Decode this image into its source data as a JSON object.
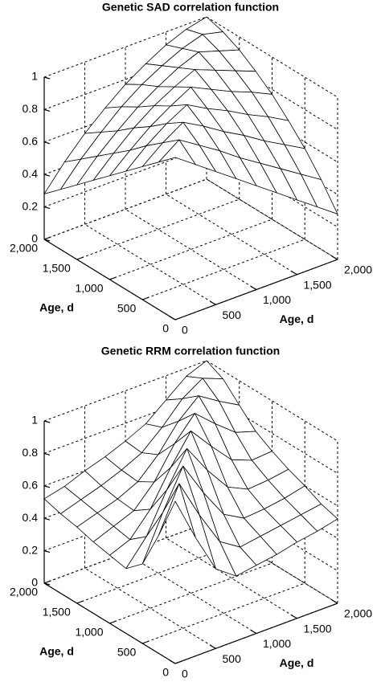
{
  "chart_data": [
    {
      "type": "surface",
      "title": "Genetic SAD correlation function",
      "xlabel": "Age, d",
      "ylabel": "Age, d",
      "x": [
        0,
        250,
        500,
        750,
        1000,
        1250,
        1500,
        1750,
        2000
      ],
      "y": [
        0,
        250,
        500,
        750,
        1000,
        1250,
        1500,
        1750,
        2000
      ],
      "z": [
        [
          1,
          0.91,
          0.82,
          0.73,
          0.64,
          0.55,
          0.46,
          0.37,
          0.28
        ],
        [
          0.91,
          1,
          0.92,
          0.84,
          0.75,
          0.67,
          0.59,
          0.51,
          0.43
        ],
        [
          0.82,
          0.92,
          1,
          0.93,
          0.85,
          0.78,
          0.7,
          0.63,
          0.56
        ],
        [
          0.73,
          0.84,
          0.93,
          1,
          0.93,
          0.87,
          0.8,
          0.74,
          0.67
        ],
        [
          0.64,
          0.75,
          0.85,
          0.93,
          1,
          0.94,
          0.88,
          0.83,
          0.77
        ],
        [
          0.55,
          0.67,
          0.78,
          0.87,
          0.94,
          1,
          0.95,
          0.9,
          0.85
        ],
        [
          0.46,
          0.59,
          0.7,
          0.8,
          0.88,
          0.95,
          1,
          0.96,
          0.92
        ],
        [
          0.37,
          0.51,
          0.63,
          0.74,
          0.83,
          0.9,
          0.96,
          1,
          0.97
        ],
        [
          0.28,
          0.43,
          0.56,
          0.67,
          0.77,
          0.85,
          0.92,
          0.97,
          1
        ]
      ],
      "xlim": [
        0,
        2000
      ],
      "ylim": [
        0,
        2000
      ],
      "zlim": [
        0,
        1
      ],
      "xticks": [
        0,
        500,
        {
          "value": 1000,
          "label": "1,000"
        },
        {
          "value": 1500,
          "label": "1,500"
        },
        {
          "value": 2000,
          "label": "2,000"
        }
      ],
      "yticks": [
        0,
        500,
        {
          "value": 1000,
          "label": "1,000"
        },
        {
          "value": 1500,
          "label": "1,500"
        },
        {
          "value": 2000,
          "label": "2,000"
        }
      ],
      "zticks": [
        0,
        0.2,
        0.4,
        0.6,
        0.8,
        1
      ],
      "grid": true
    },
    {
      "type": "surface",
      "title": "Genetic RRM correlation function",
      "xlabel": "Age, d",
      "ylabel": "Age, d",
      "x": [
        0,
        250,
        500,
        750,
        1000,
        1250,
        1500,
        1750,
        2000
      ],
      "y": [
        0,
        250,
        500,
        750,
        1000,
        1250,
        1500,
        1750,
        2000
      ],
      "z": [
        [
          1,
          0.73,
          0.49,
          0.4,
          0.42,
          0.44,
          0.47,
          0.49,
          0.52
        ],
        [
          0.73,
          1,
          0.76,
          0.55,
          0.47,
          0.49,
          0.51,
          0.53,
          0.55
        ],
        [
          0.49,
          0.76,
          1,
          0.79,
          0.61,
          0.54,
          0.55,
          0.57,
          0.6
        ],
        [
          0.4,
          0.55,
          0.79,
          1,
          0.82,
          0.67,
          0.61,
          0.62,
          0.64
        ],
        [
          0.42,
          0.47,
          0.61,
          0.82,
          1,
          0.86,
          0.73,
          0.68,
          0.69
        ],
        [
          0.44,
          0.49,
          0.54,
          0.67,
          0.86,
          1,
          0.89,
          0.79,
          0.75
        ],
        [
          0.47,
          0.51,
          0.55,
          0.61,
          0.73,
          0.89,
          1,
          0.92,
          0.85
        ],
        [
          0.49,
          0.53,
          0.57,
          0.62,
          0.68,
          0.79,
          0.92,
          1,
          0.95
        ],
        [
          0.52,
          0.55,
          0.6,
          0.64,
          0.69,
          0.75,
          0.85,
          0.95,
          1
        ]
      ],
      "xlim": [
        0,
        2000
      ],
      "ylim": [
        0,
        2000
      ],
      "zlim": [
        0,
        1
      ],
      "xticks": [
        0,
        500,
        {
          "value": 1000,
          "label": "1,000"
        },
        {
          "value": 1500,
          "label": "1,500"
        },
        {
          "value": 2000,
          "label": "2,000"
        }
      ],
      "yticks": [
        0,
        500,
        {
          "value": 1000,
          "label": "1,000"
        },
        {
          "value": 1500,
          "label": "1,500"
        },
        {
          "value": 2000,
          "label": "2,000"
        }
      ],
      "zticks": [
        0,
        0.2,
        0.4,
        0.6,
        0.8,
        1
      ],
      "grid": true
    }
  ]
}
